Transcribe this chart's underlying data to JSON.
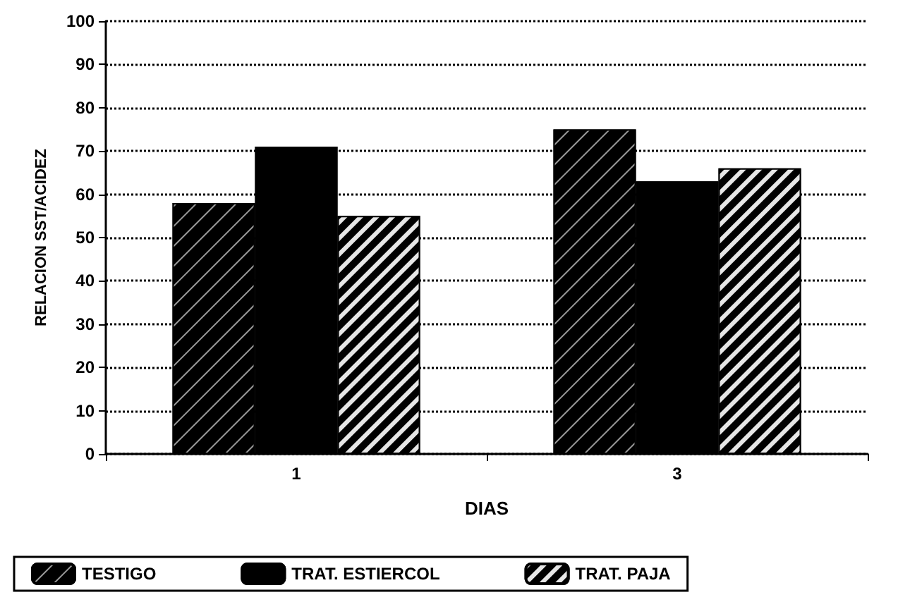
{
  "chart_data": {
    "type": "bar",
    "xlabel": "DIAS",
    "ylabel": "RELACION SST/ACIDEZ",
    "categories": [
      "1",
      "3"
    ],
    "series": [
      {
        "name": "TESTIGO",
        "color": "#000000",
        "values": [
          58,
          75
        ]
      },
      {
        "name": "TRAT. ESTIERCOL",
        "color": "#000000",
        "values": [
          71,
          63
        ]
      },
      {
        "name": "TRAT. PAJA",
        "color": "#000000",
        "values": [
          55,
          66
        ]
      }
    ],
    "ylim": [
      0,
      100
    ],
    "yticks": [
      0,
      10,
      20,
      30,
      40,
      50,
      60,
      70,
      80,
      90,
      100
    ],
    "grid": "y",
    "legend": "bottom"
  }
}
